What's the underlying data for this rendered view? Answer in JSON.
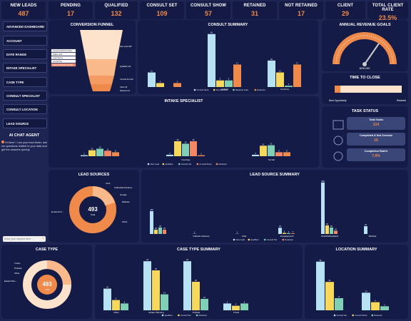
{
  "kpis": [
    {
      "title": "NEW LEADS",
      "value": "487"
    },
    {
      "title": "PENDING",
      "value": "17"
    },
    {
      "title": "QUALIFIED",
      "value": "132"
    },
    {
      "title": "CONSULT SET",
      "value": "109"
    },
    {
      "title": "CONSULT SHOW",
      "value": "57"
    },
    {
      "title": "RETAINED",
      "value": "31"
    },
    {
      "title": "NOT RETAINED",
      "value": "17"
    },
    {
      "title": "CLIENT",
      "value": "29"
    },
    {
      "title": "TOTAL CLIENT RATE",
      "value": "23.5%"
    }
  ],
  "sidebar": {
    "items": [
      "ADVANCED DASHBOARD",
      "ACCOUNT",
      "DATE RANGE",
      "INTAKE SPECIALIST",
      "CASE TYPE",
      "CONSULT SPECIALIST",
      "CONSULT LOCATION",
      "LEAD SOURCE"
    ]
  },
  "chat": {
    "title": "AI CHAT AGENT",
    "message": "Hi there ! I am your lead finder, ask me questions related to your data and get the answers quickly.",
    "placeholder": "Enter your request here..."
  },
  "funnel": {
    "title": "CONVERSION FUNNEL",
    "legend": [
      "Consult Set/Not To Date",
      "Intake Lead",
      "Lead Source",
      "Consult Set",
      "Case CS Monitor To Date"
    ],
    "labels": [
      "New Lead",
      "Qualified",
      "Consult Set",
      "Client",
      "Retained"
    ],
    "values": [
      "487",
      "132",
      "109",
      "29",
      "31"
    ]
  },
  "consult_summary": {
    "title": "CONSULT SUMMARY",
    "legend": [
      "Consult Show",
      "Not Retained",
      "Retained Later",
      "Retained"
    ],
    "groups": [
      "",
      "Andrew",
      "Courtney"
    ]
  },
  "revenue": {
    "title": "ANNUAL REVENUE GOALS",
    "current": "$200,000"
  },
  "time_to_close": {
    "title": "TIME TO CLOSE",
    "left": "New Opportunity",
    "right": "Retained"
  },
  "intake": {
    "title": "INTAKE SPECIALIST",
    "legend": [
      "New Lead",
      "Qualified",
      "Consult Set",
      "Consult Show",
      "Retained"
    ],
    "groups": [
      "",
      "Courtney",
      "Sorrell"
    ]
  },
  "tasks": {
    "title": "TASK STATUS",
    "items": [
      {
        "label": "Total Tasks",
        "value": "214"
      },
      {
        "label": "Completed & Not Overdue",
        "value": "15"
      },
      {
        "label": "Completion Rate%",
        "value": "7.0%"
      }
    ]
  },
  "lead_sources": {
    "title": "LEAD SOURCES",
    "total": "493",
    "total_label": "Total",
    "labels": [
      "Chat",
      "Cathedral Advance",
      "Google",
      "Website",
      "Other",
      "Email-ACU..."
    ]
  },
  "lead_source_summary": {
    "title": "LEAD SOURCE SUMMARY",
    "categories": [
      "Catholic Advance",
      "Chat",
      "Googlegreenlt",
      "Smith/AdSeasand",
      "Website"
    ],
    "legend": [
      "New Lead",
      "Qualified",
      "Consult Set",
      "Retained"
    ]
  },
  "case_type": {
    "title": "CASE TYPE",
    "total": "493",
    "total_label": "Total",
    "labels": [
      "Trusts",
      "Probate",
      "Other",
      "Estate Plan..."
    ]
  },
  "case_type_summary": {
    "title": "CASE TYPE SUMMARY",
    "categories": [
      "Other",
      "Estate Planning",
      "Probate",
      "Trusts"
    ],
    "legend": [
      "Qualified",
      "Consult Set",
      "Retained"
    ]
  },
  "location_summary": {
    "title": "LOCATION SUMMARY",
    "legend": [
      "Consult Set",
      "Consult Show",
      "Retained"
    ]
  },
  "colors": {
    "blue": "#b7e2f3",
    "yellow": "#f6d85c",
    "green": "#7fd0b5",
    "salmon": "#f28766",
    "orange": "#f08a4b",
    "navy": "#151b47"
  },
  "chart_data": [
    {
      "type": "bar",
      "title": "CONSULT SUMMARY",
      "categories": [
        "",
        "Andrew",
        "Courtney"
      ],
      "series": [
        {
          "name": "Consult Show",
          "values": [
            11,
            40,
            20
          ]
        },
        {
          "name": "Not Retained",
          "values": [
            3,
            5,
            11
          ]
        },
        {
          "name": "Retained Later",
          "values": [
            0,
            5,
            1
          ]
        },
        {
          "name": "Retained",
          "values": [
            3,
            17,
            17
          ]
        }
      ]
    },
    {
      "type": "bar",
      "title": "INTAKE SPECIALIST",
      "categories": [
        "",
        "Courtney",
        "Sorrell"
      ],
      "series": [
        {
          "name": "New Lead",
          "values": [
            2,
            3,
            3
          ]
        },
        {
          "name": "Qualified",
          "values": [
            12,
            30,
            21
          ]
        },
        {
          "name": "Consult Set",
          "values": [
            15,
            25,
            22
          ]
        },
        {
          "name": "Consult Show",
          "values": [
            11,
            30,
            8
          ]
        },
        {
          "name": "Retained",
          "values": [
            8,
            2,
            8
          ]
        }
      ]
    },
    {
      "type": "bar",
      "title": "LEAD SOURCE SUMMARY",
      "categories": [
        "",
        "Catholic Advance",
        "Chat",
        "Googlegreenlt",
        "Smith/AdSeasand",
        "Website"
      ],
      "series": [
        {
          "name": "New Lead",
          "values": [
            106,
            1,
            1,
            29,
            239,
            36
          ]
        },
        {
          "name": "Qualified",
          "values": [
            20,
            0,
            0,
            5,
            40,
            0
          ]
        },
        {
          "name": "Consult Set",
          "values": [
            30,
            0,
            0,
            4,
            30,
            0
          ]
        },
        {
          "name": "Retained",
          "values": [
            20,
            0,
            0,
            3,
            15,
            0
          ]
        }
      ]
    },
    {
      "type": "bar",
      "title": "CASE TYPE SUMMARY",
      "categories": [
        "",
        "Estate Planning",
        "Probate",
        "Trusts"
      ],
      "series": [
        {
          "name": "Qualified",
          "values": [
            19,
            43,
            43,
            6
          ]
        },
        {
          "name": "Consult Set",
          "values": [
            9,
            35,
            25,
            4
          ]
        },
        {
          "name": "Retained",
          "values": [
            6,
            14,
            10,
            6
          ]
        }
      ]
    },
    {
      "type": "bar",
      "title": "LOCATION SUMMARY",
      "categories": [
        "",
        ""
      ],
      "series": [
        {
          "name": "Consult Set",
          "values": [
            36,
            13
          ]
        },
        {
          "name": "Consult Show",
          "values": [
            21,
            6
          ]
        },
        {
          "name": "Retained",
          "values": [
            9,
            3
          ]
        }
      ]
    }
  ]
}
